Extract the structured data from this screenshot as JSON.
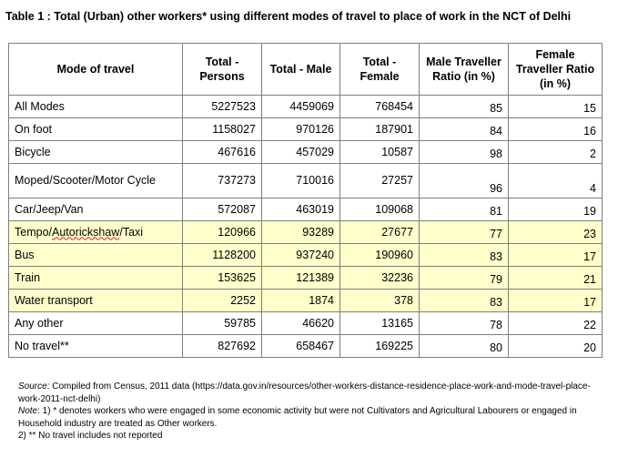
{
  "title": "Table 1 : Total (Urban) other workers* using different modes of travel to place of work in the NCT of Delhi",
  "table": {
    "headers": [
      "Mode of travel",
      "Total - Persons",
      "Total - Male",
      "Total - Female",
      "Male Traveller Ratio (in %)",
      "Female Traveller Ratio (in %)"
    ],
    "rows": [
      {
        "mode": "All Modes",
        "persons": "5227523",
        "male": "4459069",
        "female": "768454",
        "male_ratio": "85",
        "female_ratio": "15"
      },
      {
        "mode": "On foot",
        "persons": "1158027",
        "male": "970126",
        "female": "187901",
        "male_ratio": "84",
        "female_ratio": "16"
      },
      {
        "mode": "Bicycle",
        "persons": "467616",
        "male": "457029",
        "female": "10587",
        "male_ratio": "98",
        "female_ratio": "2"
      },
      {
        "mode": "Moped/Scooter/Motor Cycle",
        "persons": "737273",
        "male": "710016",
        "female": "27257",
        "male_ratio": "96",
        "female_ratio": "4"
      },
      {
        "mode": "Car/Jeep/Van",
        "persons": "572087",
        "male": "463019",
        "female": "109068",
        "male_ratio": "81",
        "female_ratio": "19"
      },
      {
        "mode_parts": [
          "Tempo/",
          "Autorickshaw",
          "/Taxi"
        ],
        "persons": "120966",
        "male": "93289",
        "female": "27677",
        "male_ratio": "77",
        "female_ratio": "23"
      },
      {
        "mode": "Bus",
        "persons": "1128200",
        "male": "937240",
        "female": "190960",
        "male_ratio": "83",
        "female_ratio": "17"
      },
      {
        "mode": "Train",
        "persons": "153625",
        "male": "121389",
        "female": "32236",
        "male_ratio": "79",
        "female_ratio": "21"
      },
      {
        "mode": "Water transport",
        "persons": "2252",
        "male": "1874",
        "female": "378",
        "male_ratio": "83",
        "female_ratio": "17"
      },
      {
        "mode": "Any other",
        "persons": "59785",
        "male": "46620",
        "female": "13165",
        "male_ratio": "78",
        "female_ratio": "22"
      },
      {
        "mode": "No travel**",
        "persons": "827692",
        "male": "658467",
        "female": "169225",
        "male_ratio": "80",
        "female_ratio": "20"
      }
    ]
  },
  "notes": {
    "source_label": "Source",
    "source_text": ": Compiled from Census, 2011 data (https://data.gov.in/resources/other-workers-distance-residence-place-work-and-mode-travel-place-work-2011-nct-delhi)",
    "note_label": "Note",
    "note_1": ": 1) * denotes workers who were engaged in some economic activity but were not Cultivators and Agricultural Labourers or engaged in Household industry are treated as Other workers.",
    "note_2": "2) ** No travel includes not reported"
  },
  "colors": {
    "highlight_row": "#ffffcc",
    "border": "#7f7f7f"
  }
}
